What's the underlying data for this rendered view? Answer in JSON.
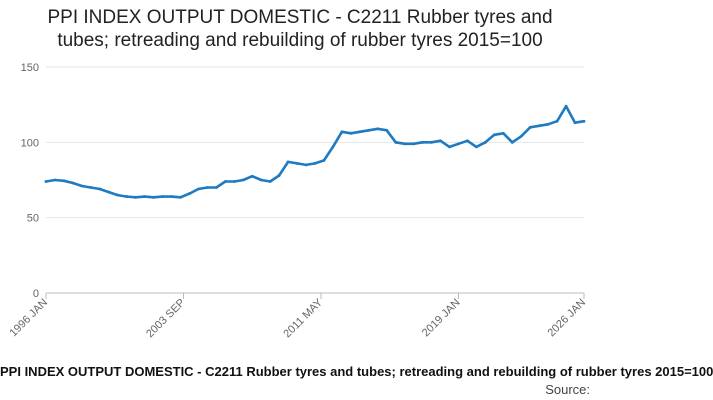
{
  "chart_data": {
    "type": "line",
    "title_line1": "PPI INDEX OUTPUT DOMESTIC - C2211 Rubber tyres and",
    "title_line2": "tubes; retreading and rebuilding of rubber tyres 2015=100",
    "xlabel": "",
    "ylabel": "",
    "ylim": [
      0,
      150
    ],
    "y_ticks": [
      0,
      50,
      100,
      150
    ],
    "x_range": [
      "1996-01",
      "2026-01"
    ],
    "x_ticks": [
      "1996 JAN",
      "2003 SEP",
      "2011 MAY",
      "2019 JAN",
      "2026 JAN"
    ],
    "grid": "horizontal",
    "legend": "bottom-center",
    "legend_text": "PPI INDEX OUTPUT DOMESTIC - C2211 Rubber tyres and tubes; retreading and rebuilding of rubber tyres 2015=100",
    "source_label": "Source:",
    "line_color": "#1f7bc1",
    "series": [
      {
        "x": [
          "1996-01",
          "1996-07",
          "1997-01",
          "1997-07",
          "1998-01",
          "1998-07",
          "1999-01",
          "1999-07",
          "2000-01",
          "2000-07",
          "2001-01",
          "2001-07",
          "2002-01",
          "2002-07",
          "2003-01",
          "2003-07",
          "2004-01",
          "2004-07",
          "2005-01",
          "2005-07",
          "2006-01",
          "2006-07",
          "2007-01",
          "2007-07",
          "2008-01",
          "2008-07",
          "2009-01",
          "2009-07",
          "2010-01",
          "2010-07",
          "2011-01",
          "2011-07",
          "2012-01",
          "2012-07",
          "2013-01",
          "2013-07",
          "2014-01",
          "2014-07",
          "2015-01",
          "2015-07",
          "2016-01",
          "2016-07",
          "2017-01",
          "2017-07",
          "2018-01",
          "2018-07",
          "2019-01",
          "2019-07",
          "2020-01",
          "2020-07",
          "2021-01",
          "2021-07",
          "2022-01",
          "2022-07",
          "2023-01",
          "2023-07",
          "2024-01",
          "2024-07",
          "2025-01",
          "2025-07",
          "2026-01"
        ],
        "values": [
          74,
          75,
          74.5,
          73,
          71,
          70,
          69,
          67,
          65,
          64,
          63.5,
          64,
          63.5,
          64,
          64,
          63.5,
          66,
          69,
          70,
          70,
          74,
          74,
          75,
          77.5,
          75,
          74,
          78,
          87,
          86,
          85,
          86,
          88,
          97,
          107,
          106,
          107,
          108,
          109,
          108,
          100,
          99,
          99,
          100,
          100,
          101,
          97,
          99,
          101,
          97,
          100,
          105,
          106,
          100,
          104,
          110,
          111,
          112,
          114,
          124,
          113,
          114
        ]
      }
    ]
  }
}
